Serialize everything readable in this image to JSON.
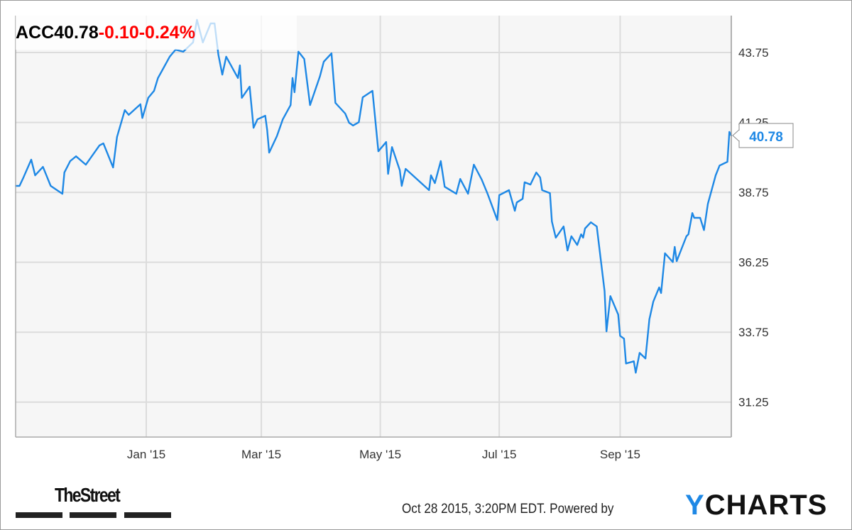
{
  "header": {
    "symbol": "ACC",
    "price": "40.78",
    "change": "-0.10",
    "change_pct": "-0.24%"
  },
  "last_value_label": "40.78",
  "footer": {
    "brand_left": "TheStreet",
    "timestamp": "Oct 28 2015, 3:20PM EDT.",
    "powered_by": "Powered by",
    "brand_right_y": "Y",
    "brand_right_rest": "CHARTS"
  },
  "colors": {
    "line": "#1e88e5",
    "negative": "#ff0000",
    "plot_bg": "#f6f6f6",
    "grid": "#dcdcdc"
  },
  "chart_data": {
    "type": "line",
    "title": "",
    "xlabel": "",
    "ylabel": "",
    "grid": true,
    "y_axis_side": "right",
    "xlim": [
      "2014-10-26",
      "2015-10-28"
    ],
    "ylim": [
      30.0,
      45.07
    ],
    "yticks": [
      "31.25",
      "33.75",
      "36.25",
      "38.75",
      "41.25",
      "43.75"
    ],
    "xticks": [
      {
        "date": "2015-01-01",
        "label": "Jan '15"
      },
      {
        "date": "2015-03-01",
        "label": "Mar '15"
      },
      {
        "date": "2015-05-01",
        "label": "May '15"
      },
      {
        "date": "2015-07-01",
        "label": "Jul '15"
      },
      {
        "date": "2015-09-01",
        "label": "Sep '15"
      }
    ],
    "series": [
      {
        "points": [
          [
            "2014-10-26",
            38.98
          ],
          [
            "2014-10-28",
            38.98
          ],
          [
            "2014-10-30",
            39.28
          ],
          [
            "2014-11-03",
            39.92
          ],
          [
            "2014-11-05",
            39.36
          ],
          [
            "2014-11-09",
            39.66
          ],
          [
            "2014-11-13",
            38.98
          ],
          [
            "2014-11-19",
            38.7
          ],
          [
            "2014-11-20",
            39.46
          ],
          [
            "2014-11-23",
            39.87
          ],
          [
            "2014-11-26",
            40.04
          ],
          [
            "2014-12-01",
            39.74
          ],
          [
            "2014-12-08",
            40.43
          ],
          [
            "2014-12-10",
            40.5
          ],
          [
            "2014-12-15",
            39.64
          ],
          [
            "2014-12-17",
            40.73
          ],
          [
            "2014-12-21",
            41.69
          ],
          [
            "2014-12-23",
            41.52
          ],
          [
            "2014-12-29",
            41.9
          ],
          [
            "2014-12-30",
            41.41
          ],
          [
            "2015-01-02",
            42.13
          ],
          [
            "2015-01-05",
            42.38
          ],
          [
            "2015-01-07",
            42.84
          ],
          [
            "2015-01-09",
            43.09
          ],
          [
            "2015-01-13",
            43.6
          ],
          [
            "2015-01-16",
            43.85
          ],
          [
            "2015-01-20",
            43.78
          ],
          [
            "2015-01-25",
            44.11
          ],
          [
            "2015-01-27",
            44.92
          ],
          [
            "2015-01-30",
            44.11
          ],
          [
            "2015-02-03",
            44.79
          ],
          [
            "2015-02-05",
            44.79
          ],
          [
            "2015-02-07",
            43.67
          ],
          [
            "2015-02-09",
            42.96
          ],
          [
            "2015-02-11",
            43.6
          ],
          [
            "2015-02-17",
            42.84
          ],
          [
            "2015-02-18",
            43.29
          ],
          [
            "2015-02-19",
            42.13
          ],
          [
            "2015-02-23",
            42.53
          ],
          [
            "2015-02-25",
            41.06
          ],
          [
            "2015-02-27",
            41.36
          ],
          [
            "2015-03-03",
            41.49
          ],
          [
            "2015-03-04",
            40.98
          ],
          [
            "2015-03-05",
            40.17
          ],
          [
            "2015-03-09",
            40.76
          ],
          [
            "2015-03-12",
            41.36
          ],
          [
            "2015-03-16",
            41.87
          ],
          [
            "2015-03-17",
            42.84
          ],
          [
            "2015-03-18",
            42.33
          ],
          [
            "2015-03-20",
            43.78
          ],
          [
            "2015-03-23",
            43.52
          ],
          [
            "2015-03-26",
            41.87
          ],
          [
            "2015-03-31",
            42.89
          ],
          [
            "2015-04-02",
            43.42
          ],
          [
            "2015-04-06",
            43.72
          ],
          [
            "2015-04-08",
            41.95
          ],
          [
            "2015-04-13",
            41.57
          ],
          [
            "2015-04-15",
            41.24
          ],
          [
            "2015-04-17",
            41.14
          ],
          [
            "2015-04-20",
            41.26
          ],
          [
            "2015-04-22",
            42.15
          ],
          [
            "2015-04-27",
            42.38
          ],
          [
            "2015-04-30",
            40.22
          ],
          [
            "2015-05-04",
            40.55
          ],
          [
            "2015-05-05",
            39.41
          ],
          [
            "2015-05-07",
            40.37
          ],
          [
            "2015-05-11",
            39.54
          ],
          [
            "2015-05-12",
            38.98
          ],
          [
            "2015-05-14",
            39.59
          ],
          [
            "2015-05-20",
            39.21
          ],
          [
            "2015-05-26",
            38.83
          ],
          [
            "2015-05-27",
            39.36
          ],
          [
            "2015-05-29",
            39.08
          ],
          [
            "2015-06-01",
            39.87
          ],
          [
            "2015-06-03",
            38.95
          ],
          [
            "2015-06-09",
            38.7
          ],
          [
            "2015-06-11",
            39.23
          ],
          [
            "2015-06-15",
            38.7
          ],
          [
            "2015-06-18",
            39.74
          ],
          [
            "2015-06-22",
            39.21
          ],
          [
            "2015-06-25",
            38.7
          ],
          [
            "2015-06-30",
            37.76
          ],
          [
            "2015-07-01",
            38.65
          ],
          [
            "2015-07-06",
            38.83
          ],
          [
            "2015-07-09",
            38.09
          ],
          [
            "2015-07-10",
            38.39
          ],
          [
            "2015-07-13",
            38.52
          ],
          [
            "2015-07-14",
            39.11
          ],
          [
            "2015-07-17",
            39.03
          ],
          [
            "2015-07-20",
            39.46
          ],
          [
            "2015-07-22",
            39.28
          ],
          [
            "2015-07-23",
            38.83
          ],
          [
            "2015-07-27",
            38.72
          ],
          [
            "2015-07-28",
            37.71
          ],
          [
            "2015-07-30",
            37.13
          ],
          [
            "2015-08-03",
            37.53
          ],
          [
            "2015-08-05",
            36.67
          ],
          [
            "2015-08-07",
            37.18
          ],
          [
            "2015-08-10",
            36.87
          ],
          [
            "2015-08-12",
            37.25
          ],
          [
            "2015-08-13",
            37.13
          ],
          [
            "2015-08-14",
            37.46
          ],
          [
            "2015-08-17",
            37.68
          ],
          [
            "2015-08-20",
            37.53
          ],
          [
            "2015-08-24",
            35.22
          ],
          [
            "2015-08-25",
            33.78
          ],
          [
            "2015-08-27",
            35.04
          ],
          [
            "2015-08-31",
            34.38
          ],
          [
            "2015-09-01",
            33.62
          ],
          [
            "2015-09-03",
            33.52
          ],
          [
            "2015-09-04",
            32.63
          ],
          [
            "2015-09-08",
            32.71
          ],
          [
            "2015-09-09",
            32.3
          ],
          [
            "2015-09-11",
            33.01
          ],
          [
            "2015-09-14",
            32.81
          ],
          [
            "2015-09-16",
            34.21
          ],
          [
            "2015-09-18",
            34.84
          ],
          [
            "2015-09-21",
            35.35
          ],
          [
            "2015-09-22",
            35.15
          ],
          [
            "2015-09-24",
            36.57
          ],
          [
            "2015-09-28",
            36.26
          ],
          [
            "2015-09-29",
            36.8
          ],
          [
            "2015-09-30",
            36.29
          ],
          [
            "2015-10-05",
            37.18
          ],
          [
            "2015-10-06",
            37.25
          ],
          [
            "2015-10-08",
            38.01
          ],
          [
            "2015-10-09",
            37.84
          ],
          [
            "2015-10-12",
            37.84
          ],
          [
            "2015-10-14",
            37.4
          ],
          [
            "2015-10-16",
            38.34
          ],
          [
            "2015-10-20",
            39.36
          ],
          [
            "2015-10-22",
            39.71
          ],
          [
            "2015-10-26",
            39.84
          ],
          [
            "2015-10-27",
            40.91
          ],
          [
            "2015-10-28",
            40.78
          ]
        ]
      }
    ]
  }
}
